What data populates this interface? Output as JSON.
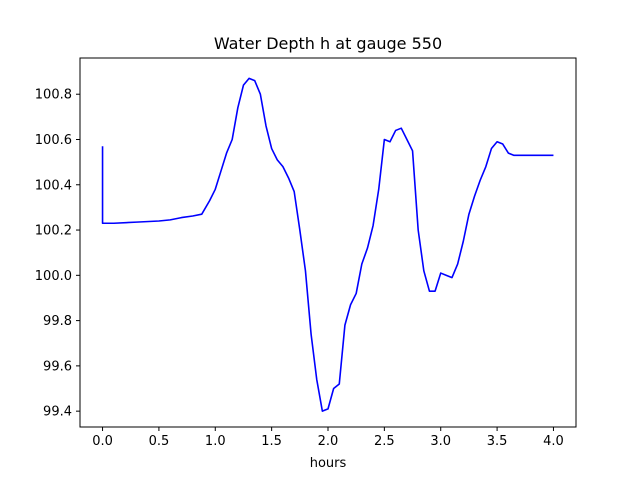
{
  "chart_data": {
    "type": "line",
    "title": "Water Depth h at gauge 550",
    "xlabel": "hours",
    "ylabel": "",
    "xlim": [
      -0.2,
      4.2
    ],
    "ylim": [
      99.33,
      100.96
    ],
    "xticks": [
      0.0,
      0.5,
      1.0,
      1.5,
      2.0,
      2.5,
      3.0,
      3.5,
      4.0
    ],
    "xtick_labels": [
      "0.0",
      "0.5",
      "1.0",
      "1.5",
      "2.0",
      "2.5",
      "3.0",
      "3.5",
      "4.0"
    ],
    "yticks": [
      99.4,
      99.6,
      99.8,
      100.0,
      100.2,
      100.4,
      100.6,
      100.8
    ],
    "ytick_labels": [
      "99.4",
      "99.6",
      "99.8",
      "100.0",
      "100.2",
      "100.4",
      "100.6",
      "100.8"
    ],
    "grid": false,
    "legend": "none",
    "series": [
      {
        "color": "#0000ff",
        "x": [
          0.0,
          0.0,
          0.02,
          0.1,
          0.3,
          0.5,
          0.6,
          0.65,
          0.7,
          0.8,
          0.88,
          0.95,
          1.0,
          1.05,
          1.1,
          1.15,
          1.2,
          1.25,
          1.3,
          1.35,
          1.4,
          1.45,
          1.5,
          1.55,
          1.6,
          1.65,
          1.7,
          1.75,
          1.8,
          1.85,
          1.9,
          1.95,
          2.0,
          2.05,
          2.1,
          2.15,
          2.2,
          2.25,
          2.3,
          2.35,
          2.4,
          2.45,
          2.5,
          2.55,
          2.6,
          2.65,
          2.7,
          2.75,
          2.8,
          2.85,
          2.9,
          2.95,
          3.0,
          3.05,
          3.1,
          3.15,
          3.2,
          3.25,
          3.3,
          3.35,
          3.4,
          3.45,
          3.5,
          3.55,
          3.6,
          3.65,
          3.7,
          3.75,
          3.8,
          3.85,
          3.9,
          3.95,
          4.0
        ],
        "y": [
          100.57,
          100.23,
          100.23,
          100.23,
          100.235,
          100.24,
          100.245,
          100.25,
          100.255,
          100.262,
          100.27,
          100.33,
          100.38,
          100.46,
          100.54,
          100.6,
          100.74,
          100.84,
          100.87,
          100.86,
          100.8,
          100.66,
          100.56,
          100.51,
          100.48,
          100.43,
          100.37,
          100.2,
          100.02,
          99.74,
          99.54,
          99.4,
          99.41,
          99.5,
          99.52,
          99.78,
          99.87,
          99.92,
          100.05,
          100.12,
          100.22,
          100.38,
          100.6,
          100.59,
          100.64,
          100.65,
          100.6,
          100.55,
          100.2,
          100.02,
          99.93,
          99.93,
          100.01,
          100.0,
          99.99,
          100.05,
          100.15,
          100.27,
          100.35,
          100.42,
          100.48,
          100.56,
          100.59,
          100.58,
          100.54,
          100.53,
          100.53,
          100.53,
          100.53,
          100.53,
          100.53,
          100.53,
          100.53
        ]
      }
    ]
  }
}
